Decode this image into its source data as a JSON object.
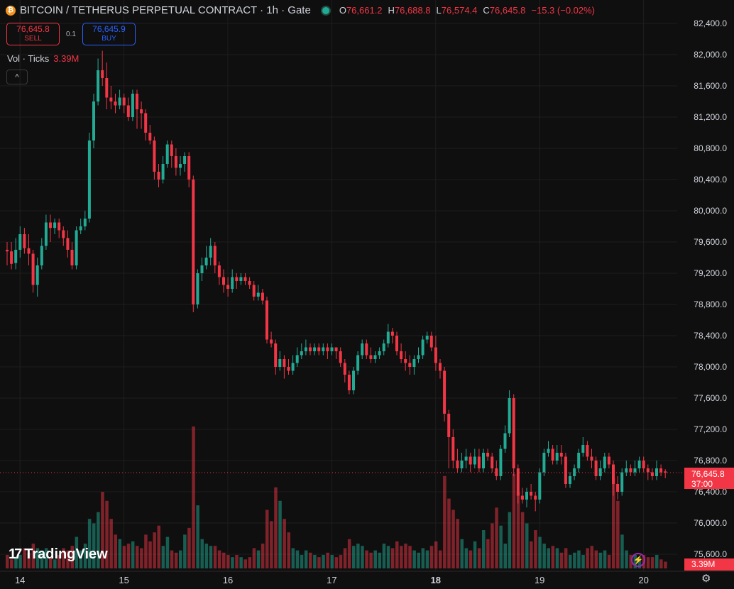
{
  "header": {
    "symbol": "BITCOIN / TETHERUS PERPETUAL CONTRACT · 1h · Gate",
    "coin_icon": "bitcoin-icon",
    "ohlc": [
      {
        "k": "O",
        "v": "76,661.2"
      },
      {
        "k": "H",
        "v": "76,688.8"
      },
      {
        "k": "L",
        "v": "76,574.4"
      },
      {
        "k": "C",
        "v": "76,645.8"
      }
    ],
    "change": "−15.3 (−0.02%)"
  },
  "trade": {
    "sell_price": "76,645.8",
    "sell_label": "SELL",
    "spread": "0.1",
    "buy_price": "76,645.9",
    "buy_label": "BUY"
  },
  "volume_legend": {
    "label": "Vol · Ticks",
    "value": "3.39M"
  },
  "collapse_icon": "chevron-up-icon",
  "price_tag": {
    "price": "76,645.8",
    "countdown": "37:00"
  },
  "volume_tag": "3.39M",
  "logo_text": "TradingView",
  "colors": {
    "up": "#22ab94",
    "down": "#f23645",
    "background": "#0f0f0f",
    "grid": "#1e1e1e",
    "axis_text": "#d1d4dc"
  },
  "chart_data": {
    "type": "candlestick",
    "interval": "1h",
    "ylim": [
      75400,
      82600
    ],
    "y_ticks": [
      75600,
      76000,
      76400,
      76800,
      77200,
      77600,
      78000,
      78400,
      78800,
      79200,
      79600,
      80000,
      80400,
      80800,
      81200,
      81600,
      82000,
      82400
    ],
    "y_tick_labels": [
      "75,600.0",
      "76,000.0",
      "76,400.0",
      "76,800.0",
      "77,200.0",
      "77,600.0",
      "78,000.0",
      "78,400.0",
      "78,800.0",
      "79,200.0",
      "79,600.0",
      "80,000.0",
      "80,400.0",
      "80,800.0",
      "81,200.0",
      "81,600.0",
      "82,000.0",
      "82,400.0"
    ],
    "x_labels": [
      {
        "label": "14",
        "bar": 2
      },
      {
        "label": "15",
        "bar": 26
      },
      {
        "label": "16",
        "bar": 50
      },
      {
        "label": "17",
        "bar": 74
      },
      {
        "label": "18",
        "bar": 98,
        "bold": true
      },
      {
        "label": "19",
        "bar": 122
      },
      {
        "label": "20",
        "bar": 146
      }
    ],
    "last_price": 76645.8,
    "candles": [
      [
        79500,
        79480,
        79600,
        79300,
        0.6
      ],
      [
        79480,
        79320,
        79600,
        79250,
        0.4
      ],
      [
        79330,
        79500,
        79650,
        79250,
        0.5
      ],
      [
        79500,
        79700,
        79800,
        79400,
        0.6
      ],
      [
        79700,
        79520,
        79780,
        79450,
        0.9
      ],
      [
        79520,
        79450,
        79700,
        79300,
        0.7
      ],
      [
        79450,
        79050,
        79500,
        78950,
        1.1
      ],
      [
        79050,
        79300,
        79400,
        78900,
        0.9
      ],
      [
        79300,
        79550,
        79650,
        79250,
        0.8
      ],
      [
        79550,
        79850,
        79950,
        79500,
        0.9
      ],
      [
        79850,
        79780,
        79950,
        79600,
        0.5
      ],
      [
        79780,
        79850,
        79900,
        79700,
        0.4
      ],
      [
        79850,
        79750,
        79900,
        79650,
        0.6
      ],
      [
        79750,
        79650,
        79800,
        79550,
        0.9
      ],
      [
        79650,
        79500,
        79750,
        79400,
        0.8
      ],
      [
        79500,
        79300,
        79600,
        79250,
        1.0
      ],
      [
        79300,
        79750,
        79800,
        79250,
        1.4
      ],
      [
        79750,
        79800,
        79900,
        79700,
        0.8
      ],
      [
        79800,
        79900,
        80000,
        79750,
        1.1
      ],
      [
        79900,
        80900,
        81000,
        79850,
        2.2
      ],
      [
        80900,
        81400,
        81500,
        80800,
        2.0
      ],
      [
        81400,
        81800,
        81950,
        81350,
        2.5
      ],
      [
        81800,
        81700,
        82050,
        81600,
        3.4
      ],
      [
        81700,
        81450,
        81900,
        81300,
        3.0
      ],
      [
        81450,
        81400,
        81600,
        81300,
        2.2
      ],
      [
        81400,
        81350,
        81500,
        81250,
        1.5
      ],
      [
        81350,
        81450,
        81550,
        81300,
        1.3
      ],
      [
        81450,
        81350,
        81500,
        81250,
        1.0
      ],
      [
        81350,
        81200,
        81450,
        81150,
        1.1
      ],
      [
        81200,
        81500,
        81550,
        81150,
        1.2
      ],
      [
        81500,
        81300,
        81550,
        81050,
        1.0
      ],
      [
        81300,
        81250,
        81400,
        81050,
        0.9
      ],
      [
        81250,
        81000,
        81300,
        80900,
        1.5
      ],
      [
        81000,
        80900,
        81100,
        80850,
        1.2
      ],
      [
        80900,
        80500,
        80950,
        80400,
        1.6
      ],
      [
        80500,
        80400,
        80600,
        80300,
        1.9
      ],
      [
        80400,
        80600,
        80700,
        80350,
        1.0
      ],
      [
        80600,
        80850,
        80900,
        80550,
        1.4
      ],
      [
        80850,
        80700,
        80900,
        80550,
        0.8
      ],
      [
        80700,
        80550,
        80800,
        80450,
        0.7
      ],
      [
        80550,
        80600,
        80700,
        80450,
        0.8
      ],
      [
        80600,
        80700,
        80750,
        80500,
        1.5
      ],
      [
        80700,
        80400,
        80750,
        80300,
        1.8
      ],
      [
        80400,
        78800,
        80450,
        78700,
        6.3
      ],
      [
        78800,
        79200,
        79250,
        78750,
        2.8
      ],
      [
        79200,
        79300,
        79400,
        79100,
        1.3
      ],
      [
        79300,
        79400,
        79550,
        79250,
        1.1
      ],
      [
        79400,
        79550,
        79650,
        79300,
        1.0
      ],
      [
        79550,
        79300,
        79600,
        79200,
        1.0
      ],
      [
        79300,
        79150,
        79350,
        79050,
        0.8
      ],
      [
        79150,
        79050,
        79250,
        78950,
        0.7
      ],
      [
        79050,
        79000,
        79150,
        78900,
        0.6
      ],
      [
        79000,
        79150,
        79250,
        78950,
        0.5
      ],
      [
        79150,
        79100,
        79200,
        79000,
        0.6
      ],
      [
        79100,
        79150,
        79200,
        79050,
        0.5
      ],
      [
        79150,
        79100,
        79200,
        79050,
        0.4
      ],
      [
        79100,
        79050,
        79150,
        79000,
        0.5
      ],
      [
        79050,
        78900,
        79100,
        78850,
        0.9
      ],
      [
        78900,
        78950,
        79050,
        78850,
        0.8
      ],
      [
        78950,
        78850,
        79000,
        78800,
        1.1
      ],
      [
        78850,
        78350,
        78900,
        78300,
        2.6
      ],
      [
        78350,
        78300,
        78450,
        78250,
        2.1
      ],
      [
        78300,
        78000,
        78350,
        77900,
        3.6
      ],
      [
        78000,
        78100,
        78200,
        77950,
        3.0
      ],
      [
        78100,
        78000,
        78150,
        77850,
        2.2
      ],
      [
        78000,
        77950,
        78100,
        77900,
        1.6
      ],
      [
        77950,
        78050,
        78150,
        77900,
        0.9
      ],
      [
        78050,
        78150,
        78250,
        78000,
        0.8
      ],
      [
        78150,
        78200,
        78300,
        78100,
        0.6
      ],
      [
        78200,
        78250,
        78350,
        78150,
        0.8
      ],
      [
        78250,
        78200,
        78300,
        78150,
        0.7
      ],
      [
        78200,
        78250,
        78300,
        78150,
        0.6
      ],
      [
        78250,
        78200,
        78300,
        78150,
        0.5
      ],
      [
        78200,
        78250,
        78300,
        78150,
        0.6
      ],
      [
        78250,
        78200,
        78300,
        78100,
        0.7
      ],
      [
        78200,
        78250,
        78300,
        78150,
        0.6
      ],
      [
        78250,
        78200,
        78250,
        78100,
        0.5
      ],
      [
        78200,
        78050,
        78250,
        78000,
        0.6
      ],
      [
        78050,
        77900,
        78100,
        77800,
        0.9
      ],
      [
        77900,
        77700,
        77950,
        77650,
        1.3
      ],
      [
        77700,
        77950,
        78000,
        77650,
        1.0
      ],
      [
        77950,
        78150,
        78200,
        77900,
        1.1
      ],
      [
        78150,
        78300,
        78350,
        78100,
        1.0
      ],
      [
        78300,
        78150,
        78350,
        78100,
        0.8
      ],
      [
        78150,
        78100,
        78250,
        78050,
        0.7
      ],
      [
        78100,
        78150,
        78200,
        78050,
        0.8
      ],
      [
        78150,
        78200,
        78250,
        78100,
        0.7
      ],
      [
        78200,
        78300,
        78350,
        78150,
        1.1
      ],
      [
        78300,
        78450,
        78550,
        78250,
        1.0
      ],
      [
        78450,
        78400,
        78500,
        78300,
        0.9
      ],
      [
        78400,
        78200,
        78450,
        78150,
        1.2
      ],
      [
        78200,
        78100,
        78300,
        78050,
        1.0
      ],
      [
        78100,
        78050,
        78200,
        77950,
        1.1
      ],
      [
        78050,
        78000,
        78150,
        77900,
        1.0
      ],
      [
        78000,
        78100,
        78150,
        77900,
        0.8
      ],
      [
        78100,
        78150,
        78250,
        78050,
        0.7
      ],
      [
        78150,
        78350,
        78400,
        78100,
        0.9
      ],
      [
        78350,
        78400,
        78450,
        78300,
        0.8
      ],
      [
        78400,
        78250,
        78450,
        78200,
        1.0
      ],
      [
        78250,
        78050,
        78400,
        77950,
        1.2
      ],
      [
        78050,
        77950,
        78100,
        77850,
        0.8
      ],
      [
        77950,
        77400,
        78000,
        77300,
        4.1
      ],
      [
        77400,
        77100,
        77450,
        76700,
        3.1
      ],
      [
        77100,
        76800,
        77200,
        76700,
        2.6
      ],
      [
        76800,
        76700,
        76950,
        76650,
        2.2
      ],
      [
        76700,
        76800,
        76900,
        76650,
        1.3
      ],
      [
        76800,
        76850,
        76950,
        76700,
        0.9
      ],
      [
        76850,
        76750,
        76900,
        76650,
        0.8
      ],
      [
        76750,
        76850,
        76950,
        76700,
        1.2
      ],
      [
        76850,
        76700,
        76950,
        76650,
        0.9
      ],
      [
        76700,
        76900,
        76950,
        76650,
        1.7
      ],
      [
        76900,
        76850,
        76950,
        76800,
        1.3
      ],
      [
        76850,
        76700,
        76900,
        76650,
        2.0
      ],
      [
        76700,
        76600,
        76800,
        76550,
        2.7
      ],
      [
        76600,
        76950,
        77000,
        76550,
        1.9
      ],
      [
        76950,
        77150,
        77250,
        76900,
        1.1
      ],
      [
        77150,
        77600,
        77700,
        77100,
        2.5
      ],
      [
        77600,
        76700,
        77650,
        76600,
        4.2
      ],
      [
        76700,
        76350,
        76750,
        76250,
        3.4
      ],
      [
        76350,
        76300,
        76450,
        76250,
        2.5
      ],
      [
        76300,
        76400,
        76450,
        76200,
        2.0
      ],
      [
        76400,
        76350,
        76500,
        76300,
        1.2
      ],
      [
        76350,
        76300,
        76400,
        76150,
        1.7
      ],
      [
        76300,
        76650,
        76700,
        76250,
        1.4
      ],
      [
        76650,
        76900,
        76950,
        76600,
        1.1
      ],
      [
        76900,
        76950,
        77050,
        76850,
        0.9
      ],
      [
        76950,
        76800,
        77000,
        76750,
        1.0
      ],
      [
        76800,
        76900,
        77000,
        76750,
        0.9
      ],
      [
        76900,
        76850,
        77000,
        76750,
        0.7
      ],
      [
        76850,
        76500,
        76900,
        76450,
        0.9
      ],
      [
        76500,
        76600,
        76650,
        76450,
        0.6
      ],
      [
        76600,
        76700,
        76750,
        76550,
        0.7
      ],
      [
        76700,
        76900,
        76950,
        76650,
        0.8
      ],
      [
        76900,
        77000,
        77100,
        76850,
        0.6
      ],
      [
        77000,
        76850,
        77050,
        76800,
        0.9
      ],
      [
        76850,
        76800,
        76950,
        76700,
        1.0
      ],
      [
        76800,
        76600,
        76850,
        76550,
        0.8
      ],
      [
        76600,
        76700,
        76800,
        76550,
        0.7
      ],
      [
        76700,
        76850,
        76900,
        76650,
        0.8
      ],
      [
        76850,
        76750,
        76900,
        76700,
        0.6
      ],
      [
        76750,
        76500,
        76800,
        76350,
        4.0
      ],
      [
        76500,
        76400,
        76600,
        76300,
        3.0
      ],
      [
        76400,
        76650,
        76700,
        76350,
        1.5
      ],
      [
        76650,
        76700,
        76800,
        76600,
        0.8
      ],
      [
        76700,
        76650,
        76750,
        76600,
        0.6
      ],
      [
        76650,
        76700,
        76800,
        76600,
        0.6
      ],
      [
        76700,
        76800,
        76850,
        76650,
        0.5
      ],
      [
        76800,
        76700,
        76850,
        76650,
        0.6
      ],
      [
        76700,
        76650,
        76750,
        76550,
        0.5
      ],
      [
        76650,
        76600,
        76700,
        76550,
        0.5
      ],
      [
        76600,
        76700,
        76800,
        76550,
        0.6
      ],
      [
        76700,
        76650,
        76750,
        76600,
        0.4
      ],
      [
        76661.2,
        76645.8,
        76688.8,
        76574.4,
        0.3
      ]
    ]
  }
}
